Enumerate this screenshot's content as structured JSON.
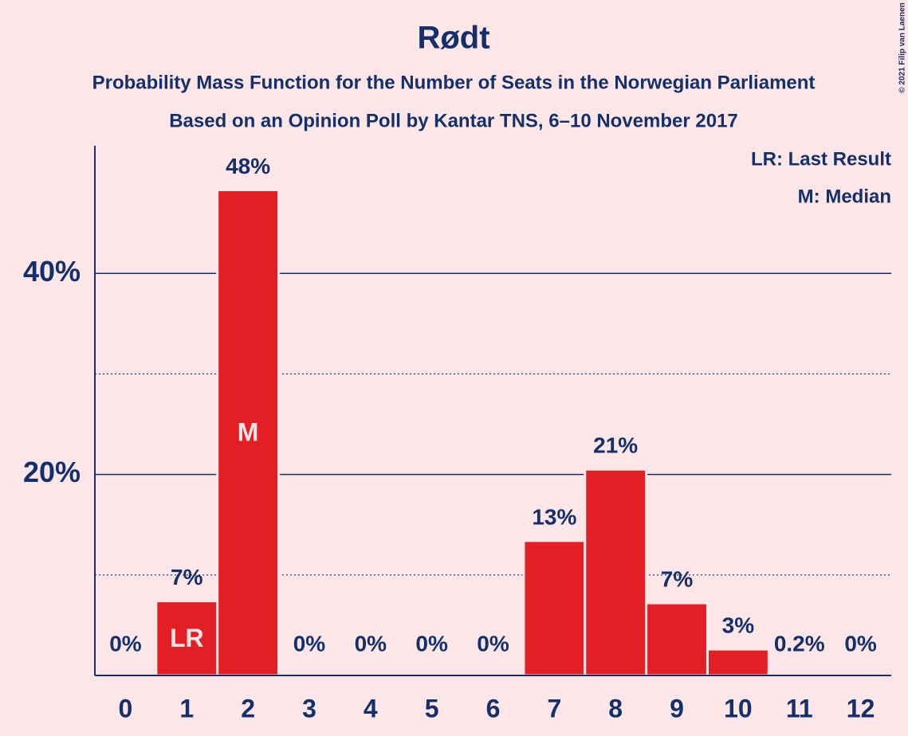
{
  "chart_data": {
    "type": "bar",
    "title": "Rødt",
    "subtitle": [
      "Probability Mass Function for the Number of Seats in the Norwegian Parliament",
      "Based on an Opinion Poll by Kantar TNS, 6–10 November 2017"
    ],
    "categories": [
      "0",
      "1",
      "2",
      "3",
      "4",
      "5",
      "6",
      "7",
      "8",
      "9",
      "10",
      "11",
      "12"
    ],
    "values": [
      0,
      7.4,
      48.3,
      0,
      0,
      0,
      0,
      13.4,
      20.5,
      7.2,
      2.6,
      0.2,
      0
    ],
    "value_labels": [
      "0%",
      "7%",
      "48%",
      "0%",
      "0%",
      "0%",
      "0%",
      "13%",
      "21%",
      "7%",
      "3%",
      "0.2%",
      "0%"
    ],
    "color": "#e31e24",
    "ylim": [
      0,
      52.7
    ],
    "yticks": [
      {
        "value": 20,
        "label": "20%"
      },
      {
        "value": 40,
        "label": "40%"
      }
    ],
    "minor_yticks": [
      10,
      30
    ],
    "grid": true,
    "annotations": [
      {
        "text": "LR",
        "category": "1"
      },
      {
        "text": "M",
        "category": "2"
      }
    ],
    "legend": [
      "LR: Last Result",
      "M: Median"
    ],
    "legend_position": "top-right",
    "copyright": "© 2021 Filip van Laenen"
  }
}
